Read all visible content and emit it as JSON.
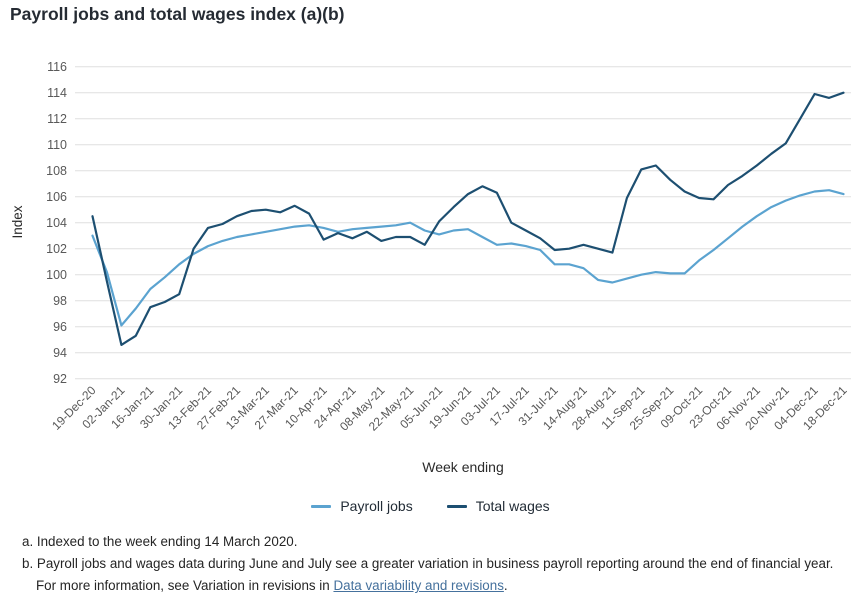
{
  "title": "Payroll jobs and total wages index (a)(b)",
  "chart_data": {
    "type": "line",
    "title": "Payroll jobs and total wages index (a)(b)",
    "xlabel": "Week ending",
    "ylabel": "Index",
    "ylim": [
      92,
      116
    ],
    "ytick_step": 2,
    "grid": true,
    "legend_position": "bottom",
    "points_per_series": 53,
    "x_tick_every_n_points": 2,
    "x_tick_labels": [
      "19-Dec-20",
      "02-Jan-21",
      "16-Jan-21",
      "30-Jan-21",
      "13-Feb-21",
      "27-Feb-21",
      "13-Mar-21",
      "27-Mar-21",
      "10-Apr-21",
      "24-Apr-21",
      "08-May-21",
      "22-May-21",
      "05-Jun-21",
      "19-Jun-21",
      "03-Jul-21",
      "17-Jul-21",
      "31-Jul-21",
      "14-Aug-21",
      "28-Aug-21",
      "11-Sep-21",
      "25-Sep-21",
      "09-Oct-21",
      "23-Oct-21",
      "06-Nov-21",
      "20-Nov-21",
      "04-Dec-21",
      "18-Dec-21"
    ],
    "series": [
      {
        "name": "Payroll jobs",
        "color": "#5ba3d0",
        "values": [
          103.0,
          100.2,
          96.1,
          97.4,
          98.9,
          99.8,
          100.8,
          101.6,
          102.2,
          102.6,
          102.9,
          103.1,
          103.3,
          103.5,
          103.7,
          103.8,
          103.6,
          103.3,
          103.5,
          103.6,
          103.7,
          103.8,
          104.0,
          103.4,
          103.1,
          103.4,
          103.5,
          102.9,
          102.3,
          102.4,
          102.2,
          101.9,
          100.8,
          100.8,
          100.5,
          99.6,
          99.4,
          99.7,
          100.0,
          100.2,
          100.1,
          100.1,
          101.1,
          101.9,
          102.8,
          103.7,
          104.5,
          105.2,
          105.7,
          106.1,
          106.4,
          106.5,
          106.2
        ]
      },
      {
        "name": "Total wages",
        "color": "#1d4f71",
        "values": [
          104.5,
          99.5,
          94.6,
          95.3,
          97.5,
          97.9,
          98.5,
          102.0,
          103.6,
          103.9,
          104.5,
          104.9,
          105.0,
          104.8,
          105.3,
          104.7,
          102.7,
          103.2,
          102.8,
          103.3,
          102.6,
          102.9,
          102.9,
          102.3,
          104.1,
          105.2,
          106.2,
          106.8,
          106.3,
          104.0,
          103.4,
          102.8,
          101.9,
          102.0,
          102.3,
          102.0,
          101.7,
          105.9,
          108.1,
          108.4,
          107.3,
          106.4,
          105.9,
          105.8,
          106.9,
          107.6,
          108.4,
          109.3,
          110.1,
          112.0,
          113.9,
          113.6,
          114.0
        ]
      }
    ]
  },
  "footnotes": {
    "a": "a. Indexed to the week ending 14 March 2020.",
    "b_line1": "b. Payroll jobs and wages data during June and July see a greater variation in business payroll reporting around the end of financial year.",
    "b_line2_prefix": "For more information, see Variation in revisions in ",
    "b_line2_link": "Data variability and revisions",
    "b_line2_suffix": "."
  },
  "colors": {
    "grid_line": "#dfdfdf",
    "tick_text": "#595959",
    "axis_title_text": "#2b2b2b",
    "title_text": "#252b33",
    "footnote_text": "#252525",
    "link": "#45719d",
    "payroll_jobs_line": "#5ba3d0",
    "total_wages_line": "#1d4f71"
  }
}
